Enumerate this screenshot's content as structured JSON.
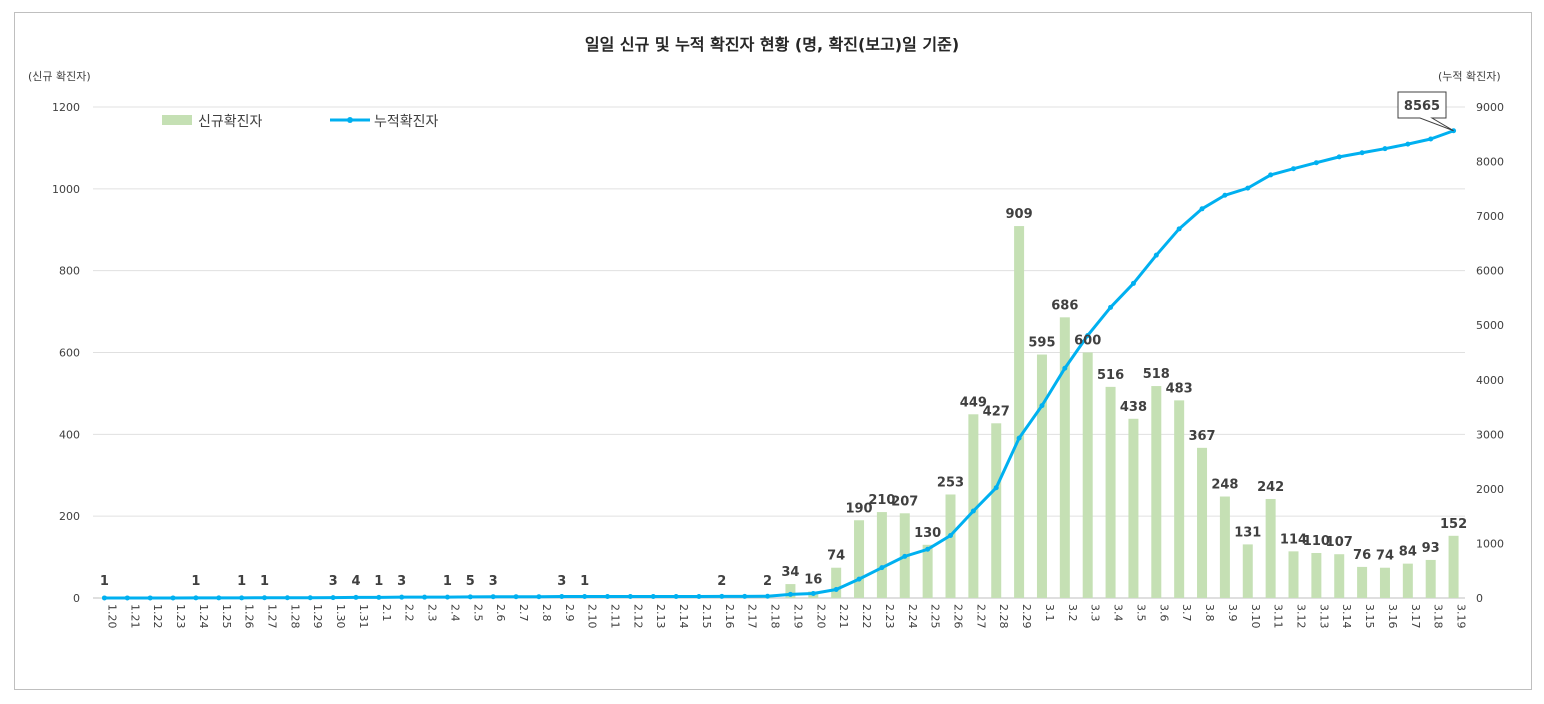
{
  "chart_data": {
    "type": "bar+line",
    "title": "일일 신규 및 누적 확진자 현황 (명, 확진(보고)일 기준)",
    "ylabel_left": "(신규 확진자)",
    "ylabel_right": "(누적 확진자)",
    "ylim_left": [
      0,
      1200
    ],
    "yticks_left": [
      0,
      200,
      400,
      600,
      800,
      1000,
      1200
    ],
    "ylim_right": [
      0,
      9000
    ],
    "yticks_right": [
      0,
      1000,
      2000,
      3000,
      4000,
      5000,
      6000,
      7000,
      8000,
      9000
    ],
    "grid": "horizontal",
    "legend_placement": "top-left",
    "colors": {
      "bar": "#c5e0b4",
      "line": "#00b0f0",
      "highlight": "#ff0000"
    },
    "categories": [
      "1.20",
      "1.21",
      "1.22",
      "1.23",
      "1.24",
      "1.25",
      "1.26",
      "1.27",
      "1.28",
      "1.29",
      "1.30",
      "1.31",
      "2.1",
      "2.2",
      "2.3",
      "2.4",
      "2.5",
      "2.6",
      "2.7",
      "2.8",
      "2.9",
      "2.10",
      "2.11",
      "2.12",
      "2.13",
      "2.14",
      "2.15",
      "2.16",
      "2.17",
      "2.18",
      "2.19",
      "2.20",
      "2.21",
      "2.22",
      "2.23",
      "2.24",
      "2.25",
      "2.26",
      "2.27",
      "2.28",
      "2.29",
      "3.1",
      "3.2",
      "3.3",
      "3.4",
      "3.5",
      "3.6",
      "3.7",
      "3.8",
      "3.9",
      "3.10",
      "3.11",
      "3.12",
      "3.13",
      "3.14",
      "3.15",
      "3.16",
      "3.17",
      "3.18",
      "3.19"
    ],
    "series": [
      {
        "name": "신규확진자",
        "type": "bar",
        "axis": "left",
        "values": [
          1,
          0,
          0,
          0,
          1,
          0,
          1,
          1,
          0,
          0,
          3,
          4,
          1,
          3,
          0,
          1,
          5,
          3,
          0,
          0,
          3,
          1,
          0,
          0,
          0,
          0,
          0,
          2,
          0,
          2,
          34,
          16,
          74,
          190,
          210,
          207,
          130,
          253,
          449,
          427,
          909,
          595,
          686,
          600,
          516,
          438,
          518,
          483,
          367,
          248,
          131,
          242,
          114,
          110,
          107,
          76,
          74,
          84,
          93,
          152
        ]
      },
      {
        "name": "누적확진자",
        "type": "line",
        "axis": "right",
        "values": [
          1,
          1,
          1,
          1,
          2,
          2,
          3,
          4,
          4,
          4,
          7,
          11,
          12,
          15,
          15,
          16,
          21,
          24,
          24,
          24,
          27,
          28,
          28,
          28,
          28,
          28,
          28,
          30,
          30,
          32,
          66,
          82,
          156,
          346,
          556,
          763,
          893,
          1146,
          1595,
          2022,
          2931,
          3526,
          4212,
          4812,
          5328,
          5766,
          6284,
          6767,
          7134,
          7382,
          7513,
          7755,
          7869,
          7979,
          8086,
          8162,
          8236,
          8320,
          8413,
          8565
        ]
      }
    ],
    "annotations": [
      {
        "text": "8565",
        "category": "3.19",
        "series": "누적확진자"
      }
    ]
  }
}
